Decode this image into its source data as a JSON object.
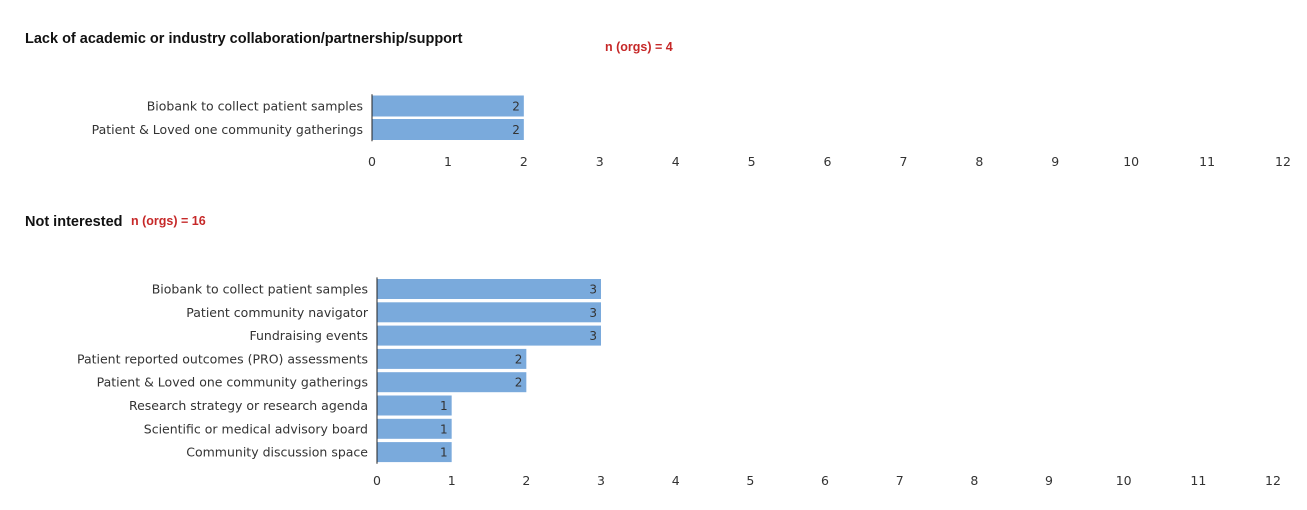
{
  "colors": {
    "bar": "#7aaadc",
    "axis": "#222222",
    "text": "#333333",
    "n_label": "#c62828"
  },
  "chart_data": [
    {
      "type": "bar",
      "orientation": "horizontal",
      "title": "Lack of academic or industry collaboration/partnership/support",
      "n_label": "n (orgs) = 4",
      "categories": [
        "Biobank to collect patient samples",
        "Patient & Loved one community gatherings"
      ],
      "values": [
        2,
        2
      ],
      "xlim": [
        0,
        12
      ],
      "xticks": [
        "0",
        "1",
        "2",
        "3",
        "4",
        "5",
        "6",
        "7",
        "8",
        "9",
        "10",
        "11",
        "12"
      ],
      "grid": false
    },
    {
      "type": "bar",
      "orientation": "horizontal",
      "title": "Not interested",
      "n_label": "n (orgs) = 16",
      "categories": [
        "Biobank to collect patient samples",
        "Patient community navigator",
        "Fundraising events",
        "Patient reported outcomes (PRO) assessments",
        "Patient & Loved one community gatherings",
        "Research strategy or research agenda",
        "Scientific or medical advisory board",
        "Community discussion space"
      ],
      "values": [
        3,
        3,
        3,
        2,
        2,
        1,
        1,
        1
      ],
      "xlim": [
        0,
        12
      ],
      "xticks": [
        "0",
        "1",
        "2",
        "3",
        "4",
        "5",
        "6",
        "7",
        "8",
        "9",
        "10",
        "11",
        "12"
      ],
      "grid": false
    }
  ]
}
